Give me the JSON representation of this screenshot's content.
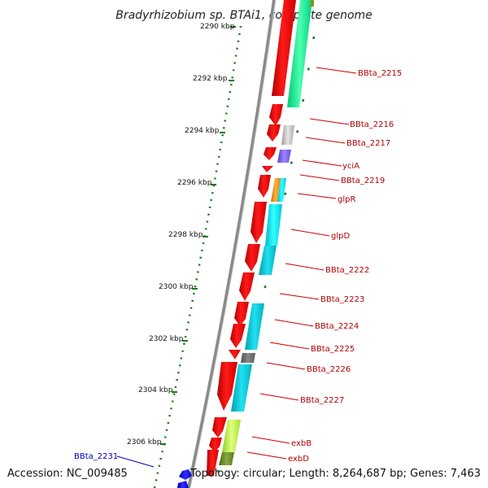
{
  "title": "Bradyrhizobium sp. BTAi1, complete genome",
  "accession_label": "Accession: NC_009485",
  "topology_label": "Topology: circular; Length: 8,264,687 bp; Genes: 7,463",
  "ruler_labels": [
    "2290 kbp",
    "2292 kbp",
    "2294 kbp",
    "2296 kbp",
    "2298 kbp",
    "2300 kbp",
    "2302 kbp",
    "2304 kbp",
    "2306 kbp"
  ],
  "gene_labels": [
    "BBta_2215",
    "BBta_2216",
    "BBta_2217",
    "yciA",
    "BBta_2219",
    "glpR",
    "glpD",
    "BBta_2222",
    "BBta_2223",
    "BBta_2224",
    "BBta_2225",
    "BBta_2226",
    "BBta_2227",
    "exbB",
    "exbD"
  ],
  "left_gene_label": "BBta_2231",
  "colors": {
    "cds": "#ff0000",
    "backbone": "#888888",
    "ruler_dots": "#1a7a1a",
    "label_text": "#b30000",
    "left_label_text": "#0000b3",
    "left_gene": "#0000ff"
  }
}
